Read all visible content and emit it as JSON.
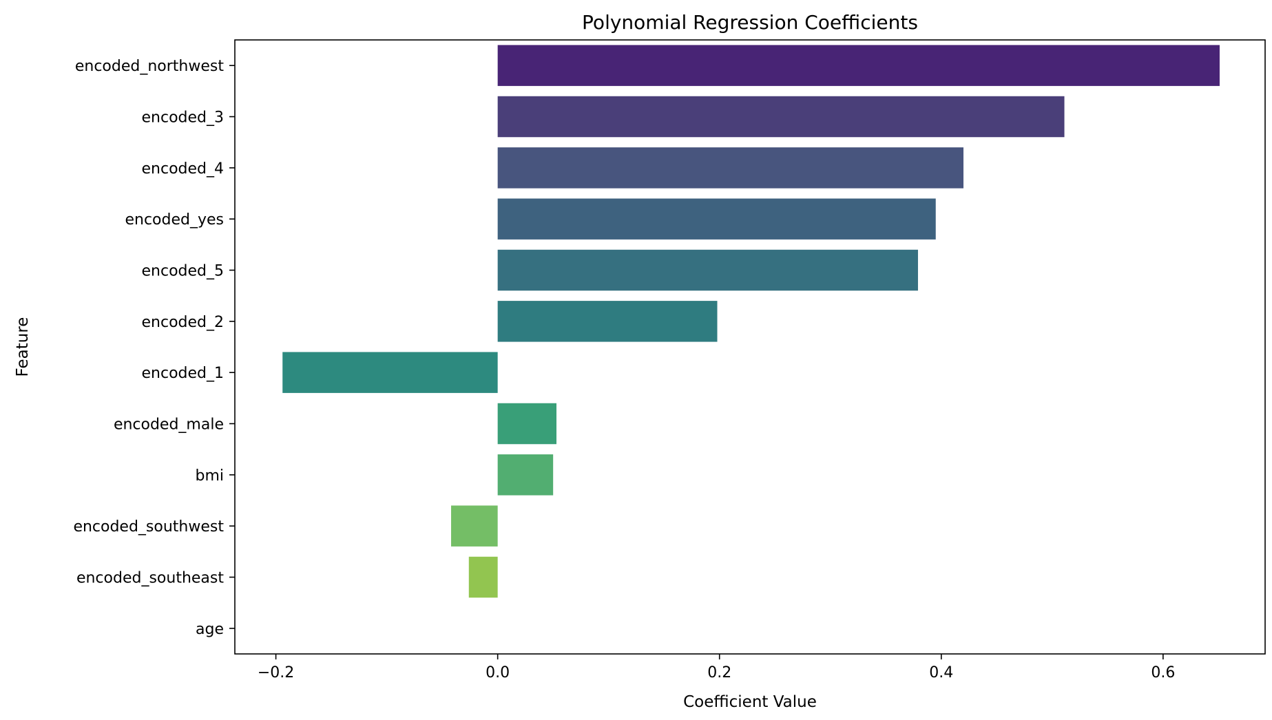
{
  "chart_data": {
    "type": "bar",
    "orientation": "horizontal",
    "title": "Polynomial Regression Coefficients",
    "xlabel": "Coefficient Value",
    "ylabel": "Feature",
    "xlim": [
      -0.237,
      0.692
    ],
    "xticks": [
      -0.2,
      0.0,
      0.2,
      0.4,
      0.6
    ],
    "xtick_labels": [
      "−0.2",
      "0.0",
      "0.2",
      "0.4",
      "0.6"
    ],
    "grid": false,
    "legend": "none",
    "categories": [
      "encoded_northwest",
      "encoded_3",
      "encoded_4",
      "encoded_yes",
      "encoded_5",
      "encoded_2",
      "encoded_1",
      "encoded_male",
      "bmi",
      "encoded_southwest",
      "encoded_southeast",
      "age"
    ],
    "values": [
      0.651,
      0.511,
      0.42,
      0.395,
      0.379,
      0.198,
      -0.194,
      0.053,
      0.05,
      -0.042,
      -0.026,
      0.0
    ],
    "colors": [
      "#482475",
      "#4a3f79",
      "#48557e",
      "#3e627f",
      "#367080",
      "#2f7c80",
      "#2d8a7f",
      "#399f78",
      "#52ae71",
      "#74be66",
      "#92c550",
      "#b0d03f"
    ]
  }
}
